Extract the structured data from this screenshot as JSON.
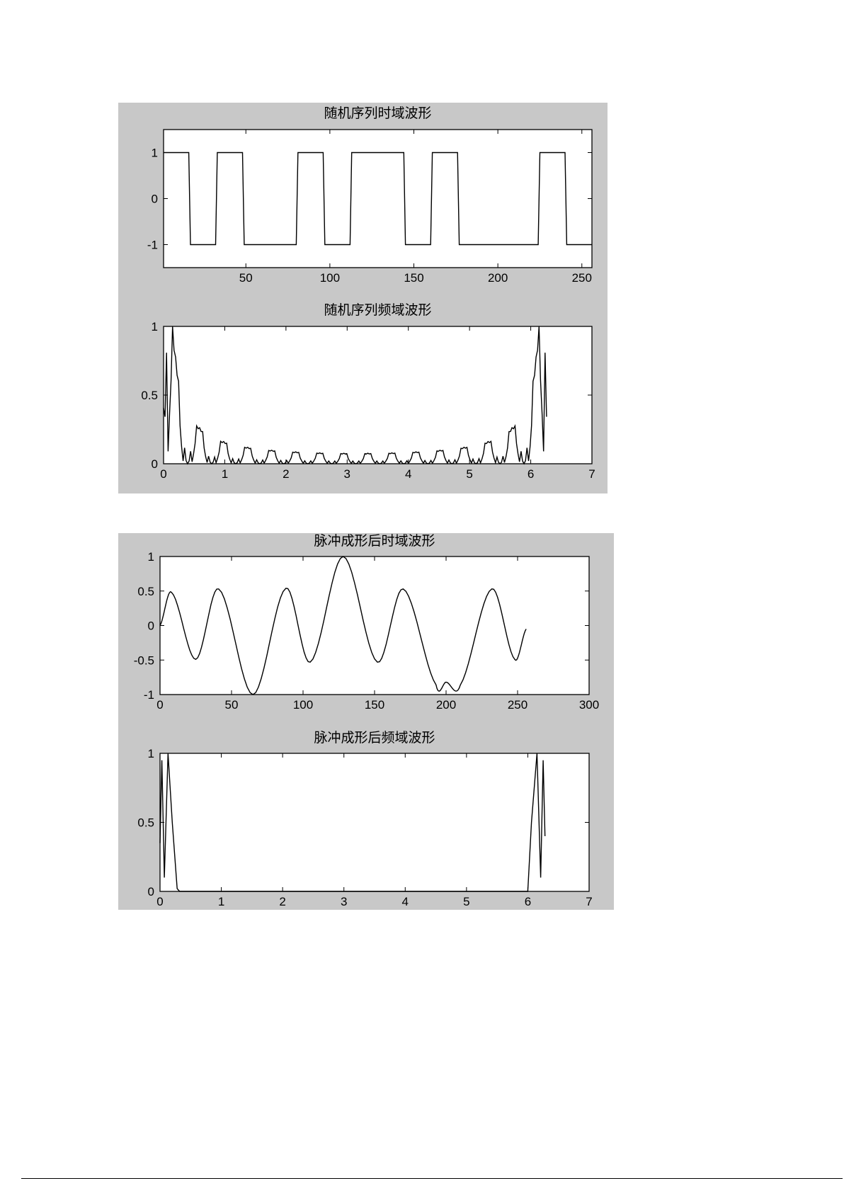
{
  "chart_data": [
    {
      "type": "line",
      "title": "随机序列时域波形",
      "xlim": [
        1,
        256
      ],
      "ylim": [
        -1.5,
        1.5
      ],
      "xticks": [
        50,
        100,
        150,
        200,
        250
      ],
      "yticks": [
        -1,
        0,
        1
      ],
      "bits": [
        1,
        -1,
        1,
        -1,
        -1,
        1,
        -1,
        1,
        1,
        -1,
        1,
        -1,
        -1,
        -1,
        1,
        -1
      ],
      "samples_per_bit": 16,
      "grid": false
    },
    {
      "type": "line",
      "title": "随机序列频域波形",
      "xlim": [
        0,
        7
      ],
      "ylim": [
        0,
        1
      ],
      "xticks": [
        0,
        1,
        2,
        3,
        4,
        5,
        6,
        7
      ],
      "yticks": [
        0,
        0.5,
        1
      ],
      "description_of_values": "normalized magnitude spectrum of the random sequence over 0 to 2π",
      "grid": false
    },
    {
      "type": "line",
      "title": "脉冲成形后时域波形",
      "xlim": [
        0,
        300
      ],
      "ylim": [
        -1,
        1
      ],
      "xticks": [
        0,
        50,
        100,
        150,
        200,
        250,
        300
      ],
      "yticks": [
        -1,
        -0.5,
        0,
        0.5,
        1
      ],
      "x": [
        0,
        8,
        25,
        41,
        65,
        88,
        105,
        128,
        152,
        170,
        193,
        200,
        210,
        232,
        248,
        256
      ],
      "y": [
        0,
        0.48,
        -0.49,
        0.53,
        -1,
        0.54,
        -0.53,
        1,
        -0.53,
        0.53,
        -0.86,
        -0.82,
        -0.86,
        0.53,
        -0.49,
        -0.05
      ],
      "grid": false
    },
    {
      "type": "line",
      "title": "脉冲成形后频域波形",
      "xlim": [
        0,
        7
      ],
      "ylim": [
        0,
        1
      ],
      "xticks": [
        0,
        1,
        2,
        3,
        4,
        5,
        6,
        7
      ],
      "yticks": [
        0,
        0.5,
        1
      ],
      "x": [
        0,
        0.03,
        0.07,
        0.13,
        0.2,
        0.28,
        0.32,
        6.0,
        6.06,
        6.15,
        6.21,
        6.25,
        6.28
      ],
      "y": [
        0.35,
        0.95,
        0.1,
        1,
        0.5,
        0.02,
        0,
        0,
        0.5,
        1,
        0.1,
        0.95,
        0.4
      ],
      "grid": false
    }
  ]
}
